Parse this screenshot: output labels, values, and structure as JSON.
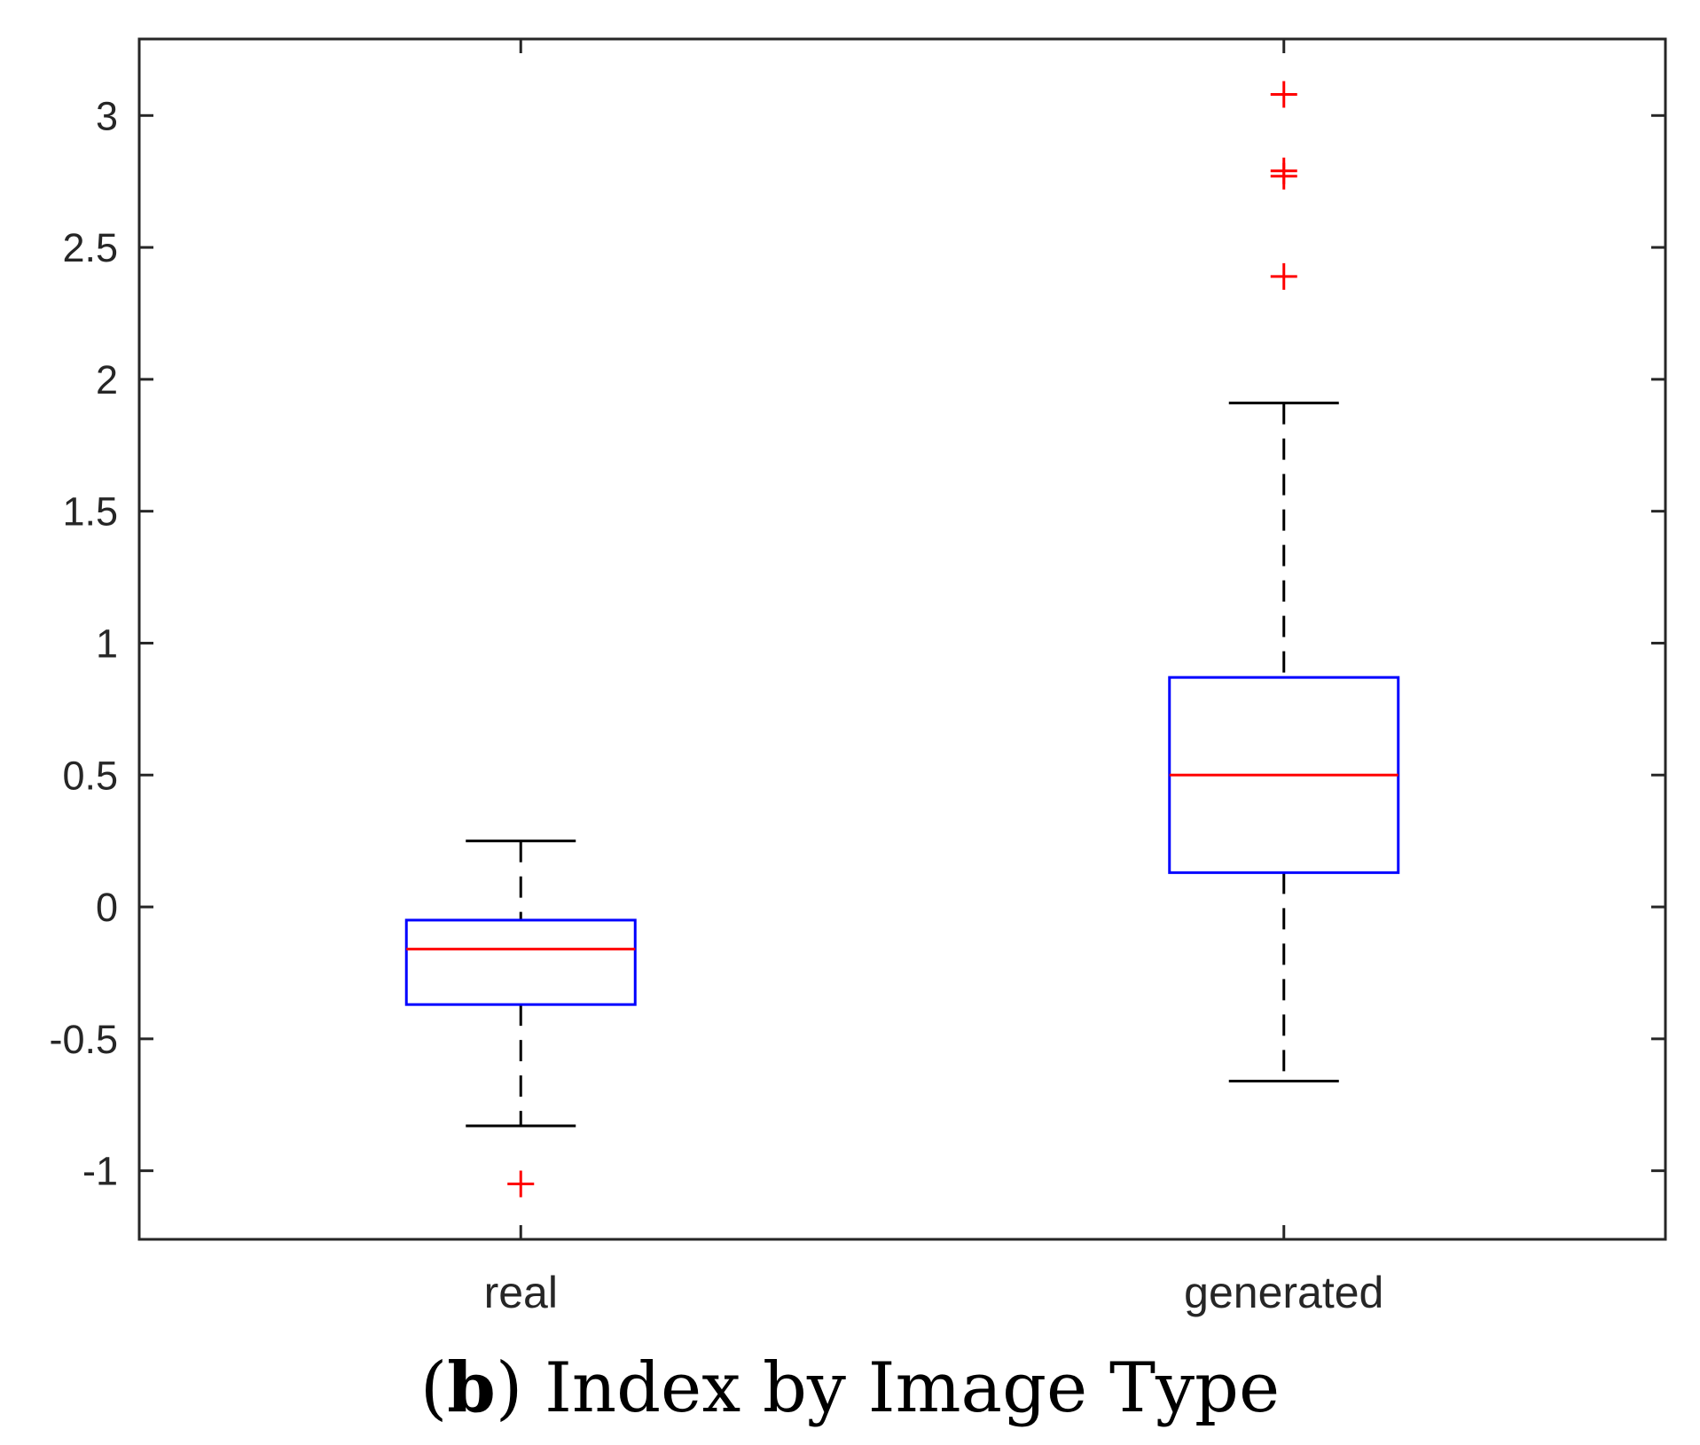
{
  "chart_data": {
    "type": "box",
    "categories": [
      "real",
      "generated"
    ],
    "boxes": [
      {
        "category": "real",
        "whisker_low": -0.83,
        "q1": -0.37,
        "median": -0.16,
        "q3": -0.05,
        "whisker_high": 0.25,
        "outliers": [
          -1.05
        ]
      },
      {
        "category": "generated",
        "whisker_low": -0.66,
        "q1": 0.13,
        "median": 0.5,
        "q3": 0.87,
        "whisker_high": 1.91,
        "outliers": [
          3.08,
          2.79,
          2.77,
          2.39
        ]
      }
    ],
    "yticks": [
      -1,
      -0.5,
      0,
      0.5,
      1,
      1.5,
      2,
      2.5,
      3
    ],
    "ytick_labels": [
      "-1",
      "-0.5",
      "0",
      "0.5",
      "1",
      "1.5",
      "2",
      "2.5",
      "3"
    ],
    "ylim": [
      -1.26,
      3.29
    ],
    "grid": false,
    "colors": {
      "box": "#0000ff",
      "median": "#ff0000",
      "outlier": "#ff0000",
      "whisker": "#000000",
      "axes": "#262626"
    }
  },
  "caption": {
    "letter": "b",
    "open": "(",
    "close": ")",
    "text": " Index by Image Type"
  }
}
